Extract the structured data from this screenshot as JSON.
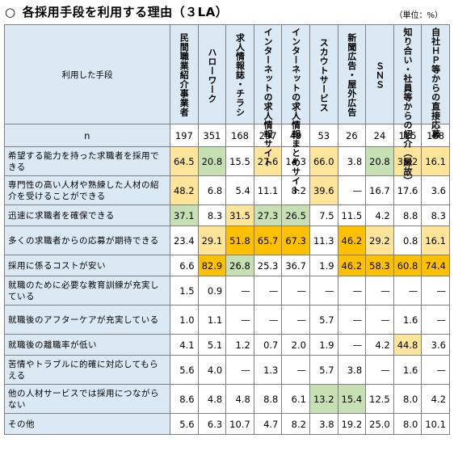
{
  "title": {
    "circle": "○",
    "text": "各採用手段を利用する理由（３LA）"
  },
  "unit": "（単位：%）",
  "corner_label": "利用した手段",
  "columns": [
    "民間職業紹介事業者",
    "ハローワーク",
    "求人情報誌・チラシ",
    "インターネットの求人情報サイト",
    "インターネットの求人情報まとめサイト",
    "スカウトサービス",
    "新聞広告・屋外広告",
    "ＳＮＳ",
    "知り合い・社員等からの紹介（縁故）",
    "自社ＨＰ等からの直接応募"
  ],
  "n_row": {
    "label": "n",
    "values": [
      "197",
      "351",
      "168",
      "297",
      "49",
      "53",
      "26",
      "24",
      "125",
      "168"
    ]
  },
  "rows": [
    {
      "label": "希望する能力を持った求職者を採用できる",
      "values": [
        "64.5",
        "20.8",
        "15.5",
        "27.6",
        "14.3",
        "66.0",
        "3.8",
        "20.8",
        "35.2",
        "16.1"
      ]
    },
    {
      "label": "専門性の高い人材や熟練した人材の紹介を受けることができる",
      "values": [
        "48.2",
        "6.8",
        "5.4",
        "11.1",
        "8.2",
        "39.6",
        "—",
        "16.7",
        "17.6",
        "3.6"
      ]
    },
    {
      "label": "迅速に求職者を確保できる",
      "values": [
        "37.1",
        "8.3",
        "31.5",
        "27.3",
        "26.5",
        "7.5",
        "11.5",
        "4.2",
        "8.8",
        "8.3"
      ]
    },
    {
      "label": "多くの求職者からの応募が期待できる",
      "values": [
        "23.4",
        "29.1",
        "51.8",
        "65.7",
        "67.3",
        "11.3",
        "46.2",
        "29.2",
        "0.8",
        "16.1"
      ]
    },
    {
      "label": "採用に係るコストが安い",
      "values": [
        "6.6",
        "82.9",
        "26.8",
        "25.3",
        "36.7",
        "1.9",
        "46.2",
        "58.3",
        "60.8",
        "74.4"
      ]
    },
    {
      "label": "就職のために必要な教育訓練が充実している",
      "values": [
        "1.5",
        "0.9",
        "—",
        "—",
        "—",
        "—",
        "—",
        "—",
        "—",
        "—"
      ]
    },
    {
      "label": "就職後のアフターケアが充実している",
      "values": [
        "1.0",
        "1.1",
        "—",
        "—",
        "—",
        "5.7",
        "—",
        "—",
        "1.6",
        "—"
      ]
    },
    {
      "label": "就職後の離職率が低い",
      "values": [
        "4.1",
        "5.1",
        "1.2",
        "0.7",
        "2.0",
        "1.9",
        "—",
        "4.2",
        "44.8",
        "3.6"
      ]
    },
    {
      "label": "苦情やトラブルに的確に対応してもらえる",
      "values": [
        "5.6",
        "4.0",
        "—",
        "1.3",
        "—",
        "5.7",
        "3.8",
        "—",
        "1.6",
        "—"
      ]
    },
    {
      "label": "他の人材サービスでは採用につながらない",
      "values": [
        "8.6",
        "4.8",
        "4.8",
        "8.8",
        "6.1",
        "13.2",
        "15.4",
        "12.5",
        "8.0",
        "4.2"
      ]
    },
    {
      "label": "その他",
      "values": [
        "5.6",
        "6.3",
        "10.7",
        "4.7",
        "8.2",
        "3.8",
        "19.2",
        "25.0",
        "8.0",
        "10.1"
      ]
    }
  ],
  "highlight_colors": {
    "light_yellow": "#ffe599",
    "orange": "#ffc000",
    "green": "#c6e0b4",
    "header_blue": "#dbe9f4"
  }
}
